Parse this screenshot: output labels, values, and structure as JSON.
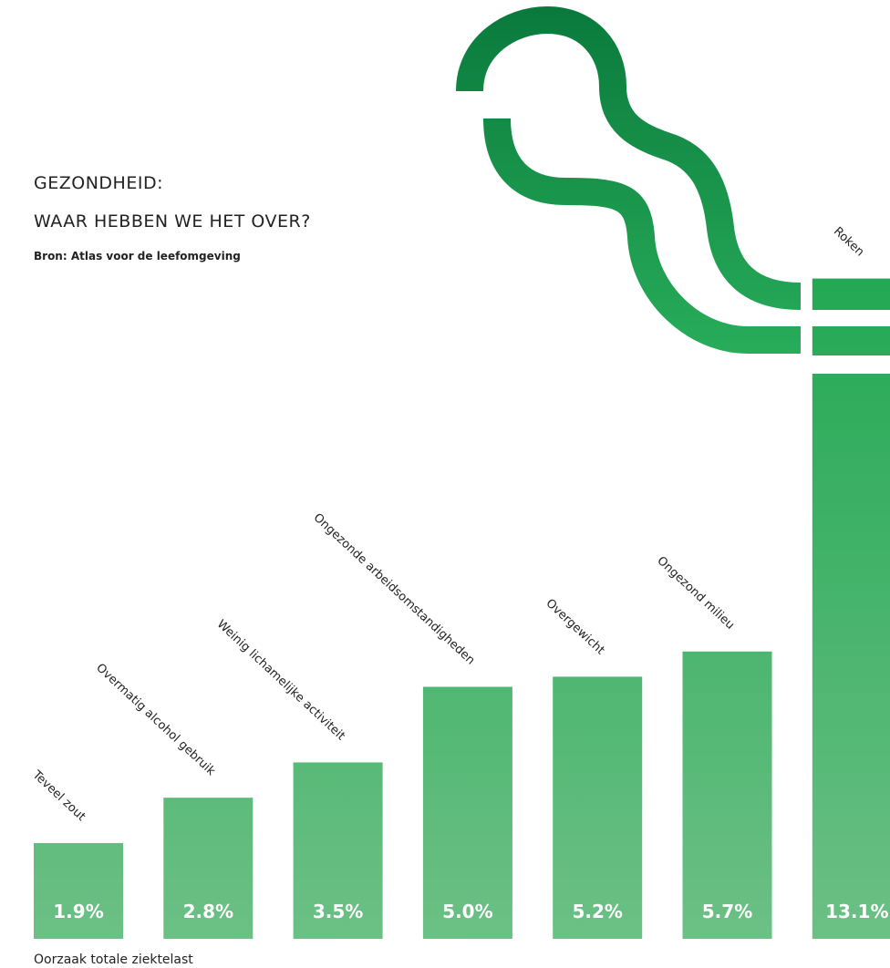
{
  "chart_data": {
    "type": "bar",
    "title": "GEZONDHEID:",
    "subtitle": "WAAR HEBBEN WE HET OVER?",
    "source": "Bron: Atlas voor de leefomgeving",
    "x_label": "Oorzaak totale ziektelast",
    "categories": [
      "Teveel zout",
      "Overmatig alcohol gebruik",
      "Weinig lichamelijke activiteit",
      "Ongezonde arbeidsomstandigheden",
      "Overgewicht",
      "Ongezond milieu",
      "Roken"
    ],
    "values": [
      1.9,
      2.8,
      3.5,
      5.0,
      5.2,
      5.7,
      13.1
    ],
    "value_labels": [
      "1.9%",
      "2.8%",
      "3.5%",
      "5.0%",
      "5.2%",
      "5.7%",
      "13.1%"
    ],
    "color": "#3db365"
  }
}
